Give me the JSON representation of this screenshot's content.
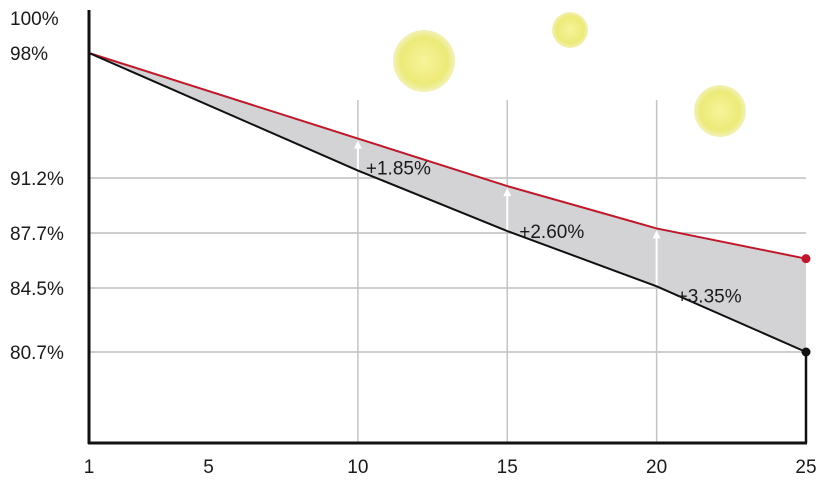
{
  "chart_data": {
    "type": "line",
    "title": "",
    "xlabel": "",
    "ylabel": "",
    "x_ticks": [
      "1",
      "5",
      "10",
      "15",
      "20",
      "25"
    ],
    "y_ticks": [
      {
        "value": 100,
        "label": "100%"
      },
      {
        "value": 98,
        "label": "98%"
      },
      {
        "value": 91.2,
        "label": "91.2%"
      },
      {
        "value": 87.7,
        "label": "87.7%"
      },
      {
        "value": 84.5,
        "label": "84.5%"
      },
      {
        "value": 80.7,
        "label": "80.7%"
      }
    ],
    "gridlines_y": [
      91.2,
      87.7,
      84.5,
      80.7
    ],
    "gridlines_x": [
      10,
      15,
      20
    ],
    "xlim": [
      1,
      25
    ],
    "ylim": [
      74.3,
      100
    ],
    "series": [
      {
        "color": "#c0182a",
        "points": [
          [
            1,
            98
          ],
          [
            10,
            93.05
          ],
          [
            15,
            90.3
          ],
          [
            20,
            87.85
          ],
          [
            25,
            86.1
          ]
        ]
      },
      {
        "color": "#111111",
        "points": [
          [
            1,
            98
          ],
          [
            10,
            91.2
          ],
          [
            15,
            87.7
          ],
          [
            20,
            84.5
          ],
          [
            25,
            80.7
          ]
        ]
      }
    ],
    "fill_between_color": "#d3d3d5",
    "annotations": [
      {
        "x": 10,
        "label": "+1.85%"
      },
      {
        "x": 15,
        "label": "+2.60%"
      },
      {
        "x": 20,
        "label": "+3.35%"
      }
    ],
    "decorations": [
      {
        "name": "sun-large",
        "color": "#f0ee7a"
      },
      {
        "name": "sun-small",
        "color": "#f0ee7a"
      },
      {
        "name": "sun-right",
        "color": "#f0ee7a"
      }
    ]
  }
}
